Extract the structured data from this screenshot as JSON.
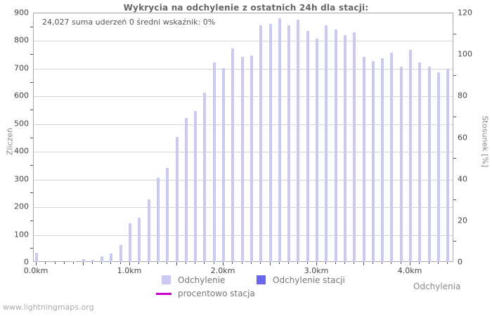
{
  "title": "Wykrycia na odchylenie z ostatnich 24h dla stacji:",
  "header_stats": {
    "sum_of_strikes": "24,027 suma uderzeń",
    "station_value": "0",
    "average_indicator": "średni wskaźnik: 0%"
  },
  "legend": {
    "items": [
      {
        "id": "odchylenie",
        "label": "Odchylenie",
        "color": "#c9c9f2",
        "type": "square"
      },
      {
        "id": "odchylenie-stacji",
        "label": "Odchylenie stacji",
        "color": "#6a66ee",
        "type": "square"
      },
      {
        "id": "procentowo-stacja",
        "label": "procentowo stacja",
        "color": "#cc00cc",
        "type": "line"
      }
    ]
  },
  "watermark": "www.lightningmaps.org",
  "chart_data": {
    "type": "bar",
    "title": "Wykrycia na odchylenie z ostatnich 24h dla stacji:",
    "xlabel": "Odchylenia",
    "ylabel_left": "Zliczeń",
    "ylabel_right": "Stosunek [%]",
    "x_unit": "km",
    "bin_width_km": 0.1,
    "xlim_km": [
      0.0,
      4.5
    ],
    "ylim_left": [
      0,
      900
    ],
    "ylim_right": [
      0,
      120
    ],
    "y_ticks_left": [
      0,
      100,
      200,
      300,
      400,
      500,
      600,
      700,
      800,
      900
    ],
    "y_ticks_right": [
      0,
      20,
      40,
      60,
      80,
      100,
      120
    ],
    "x_tick_labels": [
      "0.0km",
      "1.0km",
      "2.0km",
      "3.0km",
      "4.0km"
    ],
    "grid": true,
    "legend_position": "bottom",
    "x": [
      0.0,
      0.1,
      0.2,
      0.3,
      0.4,
      0.5,
      0.6,
      0.7,
      0.8,
      0.9,
      1.0,
      1.1,
      1.2,
      1.3,
      1.4,
      1.5,
      1.6,
      1.7,
      1.8,
      1.9,
      2.0,
      2.1,
      2.2,
      2.3,
      2.4,
      2.5,
      2.6,
      2.7,
      2.8,
      2.9,
      3.0,
      3.1,
      3.2,
      3.3,
      3.4,
      3.5,
      3.6,
      3.7,
      3.8,
      3.9,
      4.0,
      4.1,
      4.2,
      4.3,
      4.4
    ],
    "series": [
      {
        "name": "Odchylenie",
        "color": "#c9c9f2",
        "values": [
          32,
          0,
          0,
          0,
          3,
          10,
          7,
          20,
          30,
          60,
          140,
          160,
          225,
          305,
          340,
          450,
          520,
          545,
          610,
          720,
          700,
          770,
          740,
          745,
          855,
          860,
          880,
          855,
          875,
          835,
          805,
          855,
          840,
          820,
          830,
          740,
          725,
          735,
          755,
          705,
          765,
          720,
          705,
          685,
          695
        ]
      },
      {
        "name": "Odchylenie stacji",
        "color": "#6a66ee",
        "values": [
          0,
          0,
          0,
          0,
          0,
          0,
          0,
          0,
          0,
          0,
          0,
          0,
          0,
          0,
          0,
          0,
          0,
          0,
          0,
          0,
          0,
          0,
          0,
          0,
          0,
          0,
          0,
          0,
          0,
          0,
          0,
          0,
          0,
          0,
          0,
          0,
          0,
          0,
          0,
          0,
          0,
          0,
          0,
          0,
          0
        ]
      },
      {
        "name": "procentowo stacja",
        "axis": "right",
        "color": "#cc00cc",
        "values": [
          0,
          0,
          0,
          0,
          0,
          0,
          0,
          0,
          0,
          0,
          0,
          0,
          0,
          0,
          0,
          0,
          0,
          0,
          0,
          0,
          0,
          0,
          0,
          0,
          0,
          0,
          0,
          0,
          0,
          0,
          0,
          0,
          0,
          0,
          0,
          0,
          0,
          0,
          0,
          0,
          0,
          0,
          0,
          0,
          0
        ]
      }
    ]
  }
}
